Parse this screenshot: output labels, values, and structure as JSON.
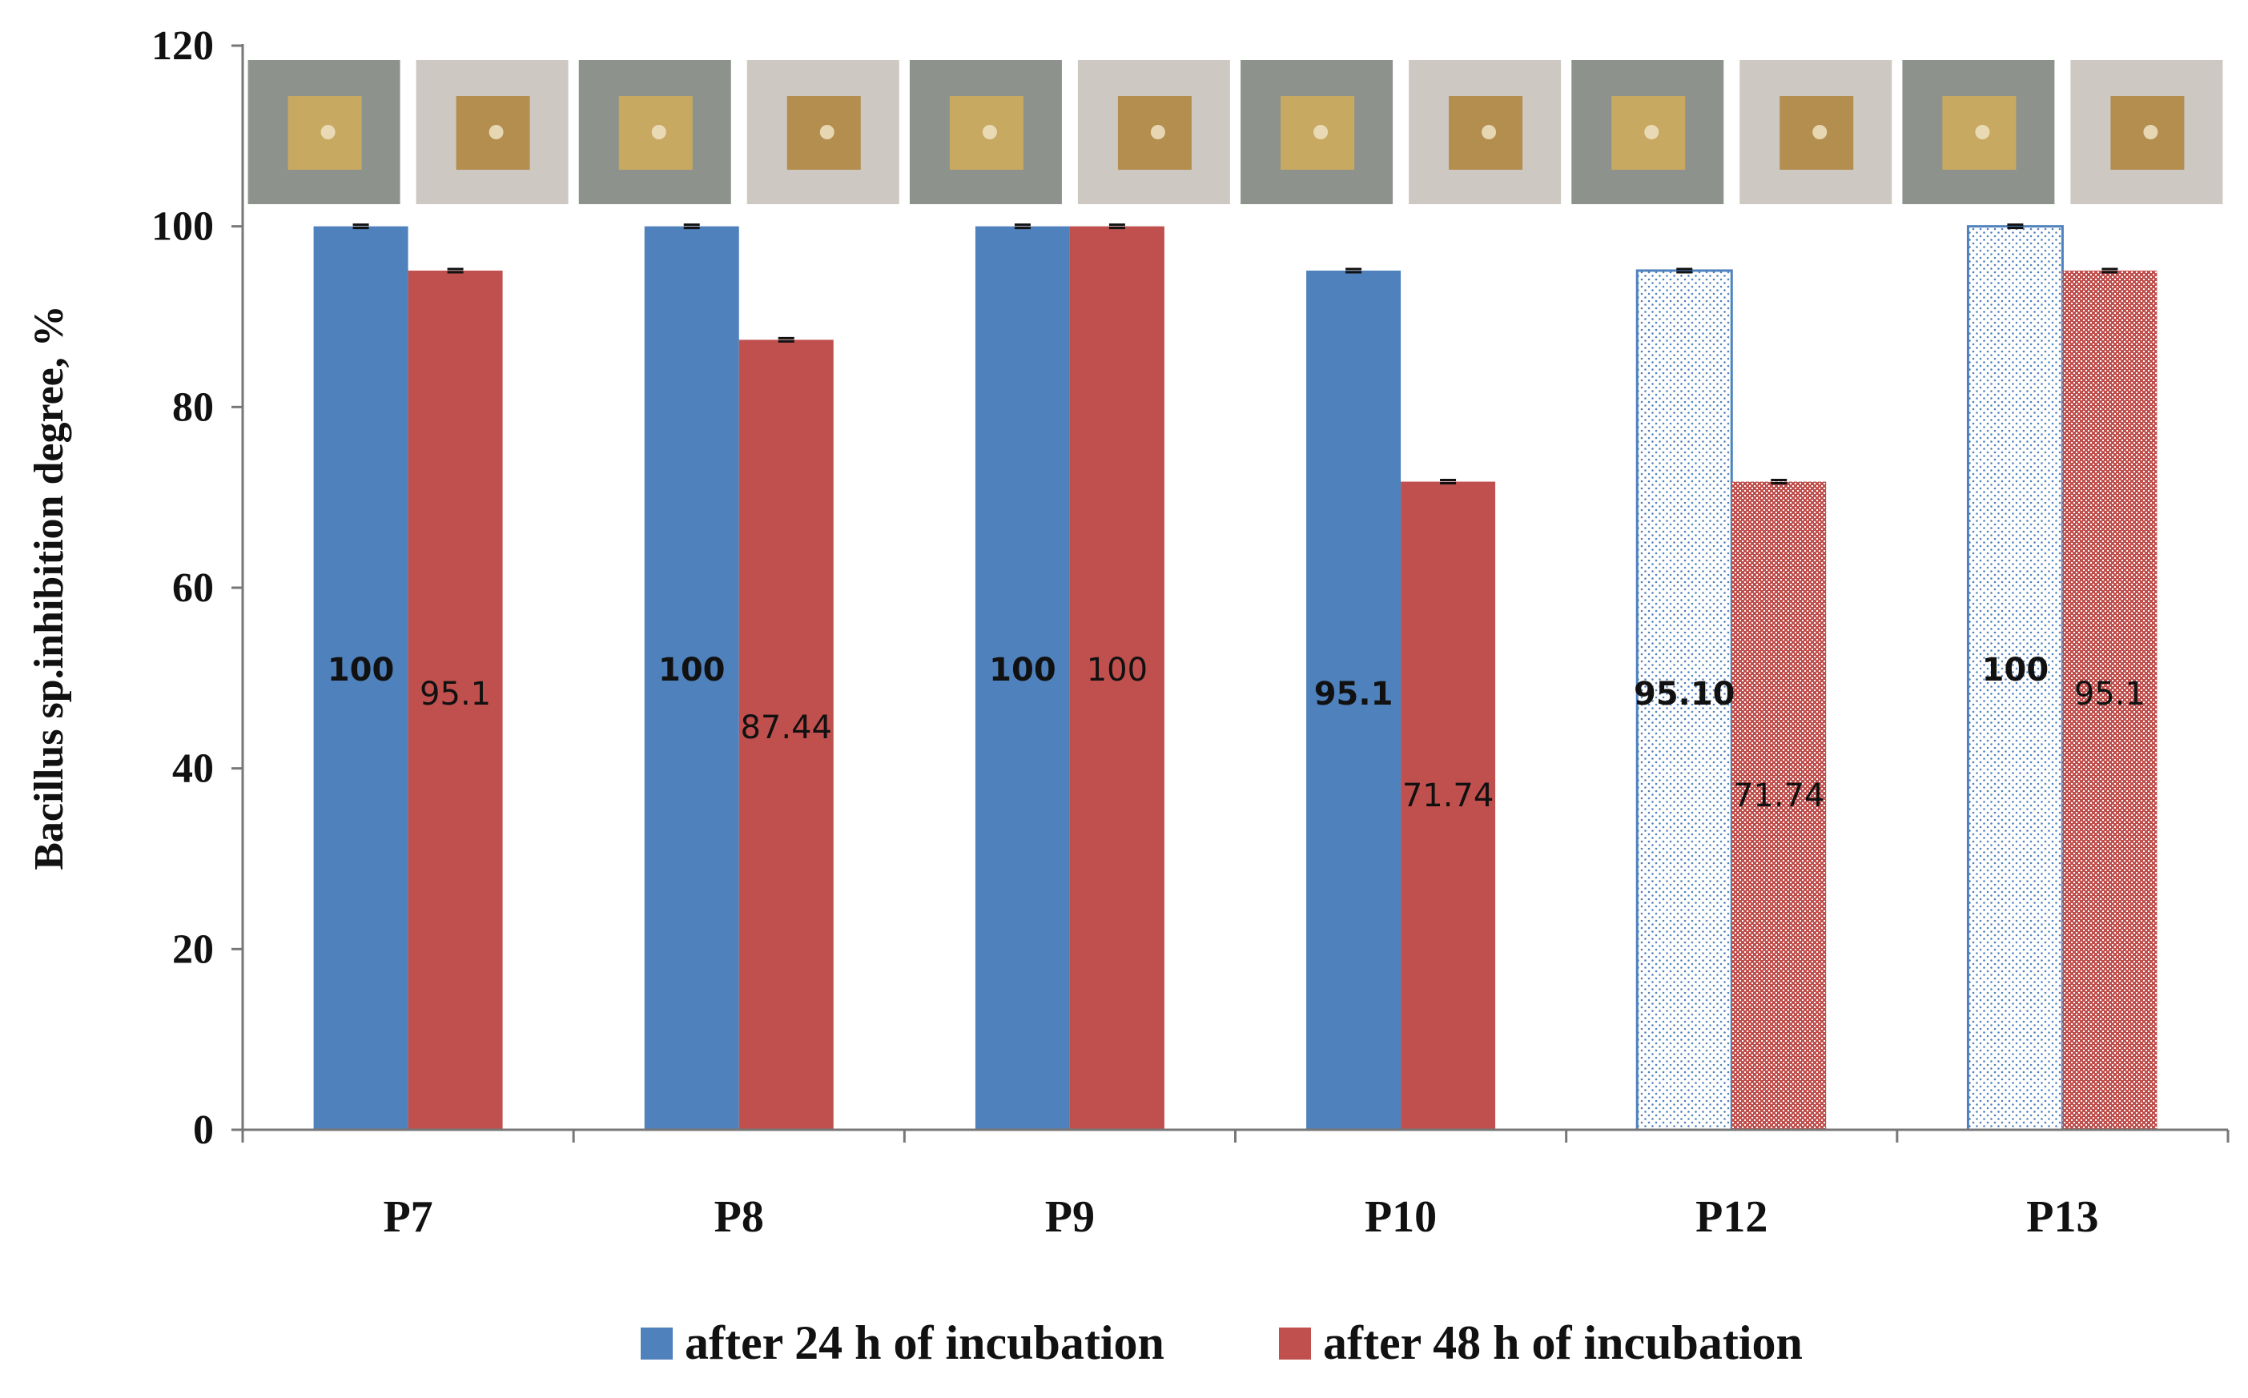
{
  "chart_data": {
    "type": "bar",
    "title": "",
    "xlabel": "",
    "ylabel": "Bacillus sp.inhibition degree, %",
    "ylim": [
      0,
      120
    ],
    "yticks": [
      0,
      20,
      40,
      60,
      80,
      100,
      120
    ],
    "grid": false,
    "legend_position": "bottom",
    "categories": [
      "P7",
      "P8",
      "P9",
      "P10",
      "P12",
      "P13"
    ],
    "series": [
      {
        "name": "after 24 h of incubation",
        "color": "#4F81BD",
        "values": [
          100,
          100,
          100,
          95.1,
          95.1,
          100
        ],
        "labels": [
          "100",
          "100",
          "100",
          "95.1",
          "95.10",
          "100"
        ],
        "patterned": [
          false,
          false,
          false,
          false,
          true,
          true
        ]
      },
      {
        "name": "after 48 h of incubation",
        "color": "#C0504D",
        "values": [
          95.1,
          87.44,
          100,
          71.74,
          71.74,
          95.1
        ],
        "labels": [
          "95.1",
          "87.44",
          "100",
          "71.74",
          "71.74",
          "95.1"
        ],
        "patterned": [
          false,
          false,
          false,
          false,
          true,
          true
        ]
      }
    ],
    "sample_photos": [
      {
        "category": "P7",
        "description": "sample photo after 24 h and after 48 h"
      },
      {
        "category": "P8",
        "description": "sample photo after 24 h and after 48 h"
      },
      {
        "category": "P9",
        "description": "sample photo after 24 h and after 48 h"
      },
      {
        "category": "P10",
        "description": "sample photo after 24 h and after 48 h"
      },
      {
        "category": "P12",
        "description": "sample photo after 24 h and after 48 h"
      },
      {
        "category": "P13",
        "description": "sample photo after 24 h and after 48 h"
      }
    ]
  }
}
